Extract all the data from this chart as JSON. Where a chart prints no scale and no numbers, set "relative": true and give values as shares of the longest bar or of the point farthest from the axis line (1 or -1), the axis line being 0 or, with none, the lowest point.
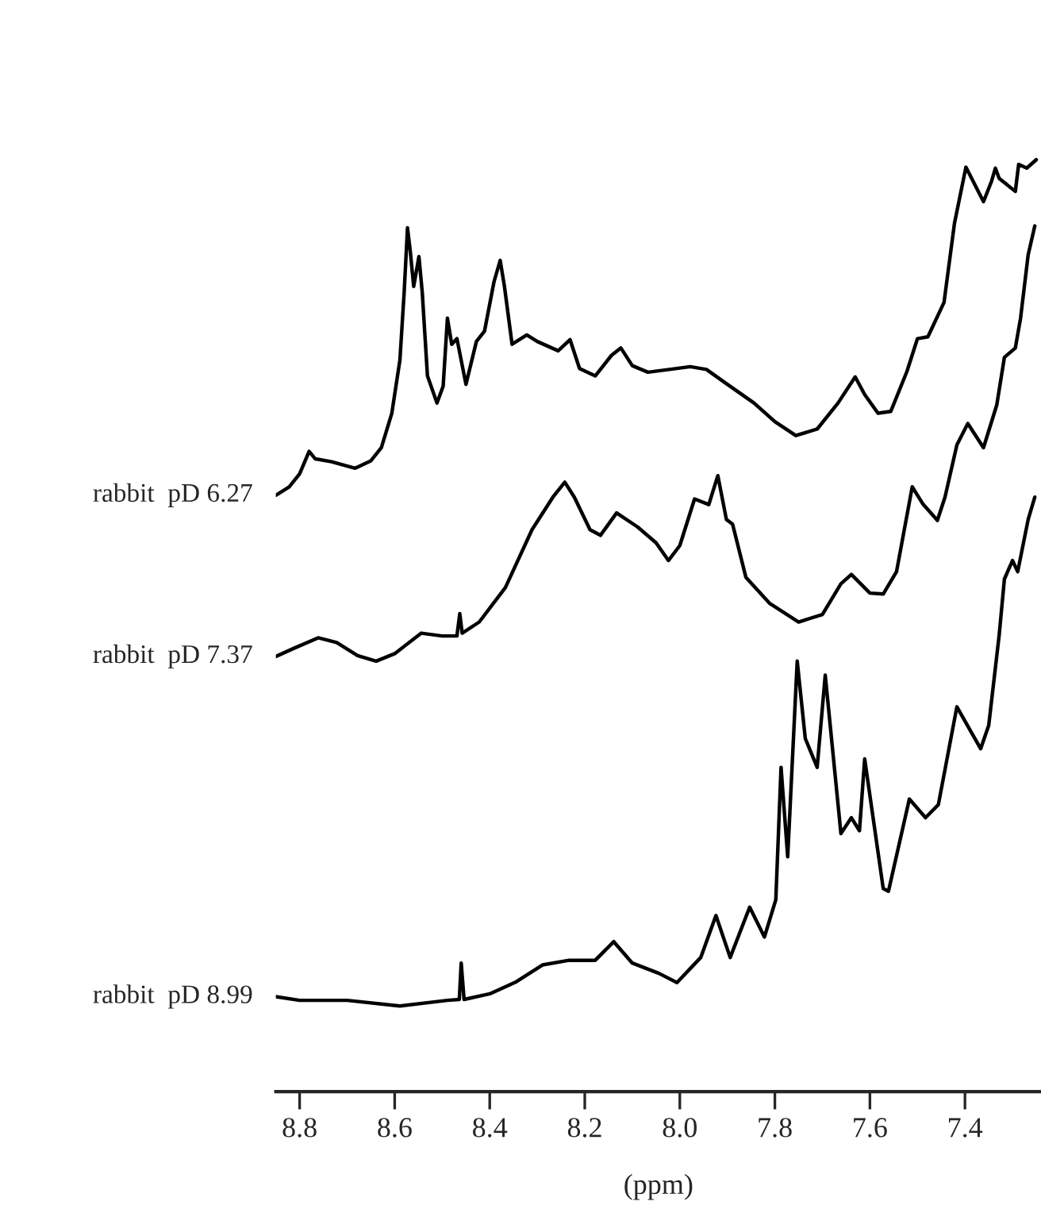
{
  "chart_data": {
    "type": "line",
    "relative": true,
    "xlabel": "(ppm)",
    "xlim": [
      8.85,
      7.24
    ],
    "xticks": [
      8.8,
      8.6,
      8.4,
      8.2,
      {
        "value": 8.0,
        "label": "8.0"
      },
      7.8,
      7.6,
      7.4
    ],
    "tick_labels": "x",
    "grid": false,
    "legend": false,
    "line_style": "solid",
    "marker": "none",
    "series": [
      {
        "name": "rabbit  pD 6.27",
        "color": "#000000",
        "x": [
          8.85,
          8.822,
          8.8,
          8.78,
          8.767,
          8.733,
          8.683,
          8.65,
          8.628,
          8.606,
          8.589,
          8.58,
          8.573,
          8.567,
          8.56,
          8.549,
          8.542,
          8.531,
          8.511,
          8.498,
          8.489,
          8.48,
          8.469,
          8.45,
          8.428,
          8.411,
          8.391,
          8.378,
          8.369,
          8.353,
          8.322,
          8.3,
          8.256,
          8.231,
          8.211,
          8.178,
          8.144,
          8.124,
          8.1,
          8.067,
          8.022,
          7.978,
          7.944,
          7.9,
          7.844,
          7.8,
          7.756,
          7.711,
          7.667,
          7.631,
          7.611,
          7.583,
          7.556,
          7.522,
          7.5,
          7.478,
          7.444,
          7.422,
          7.398,
          7.361,
          7.344,
          7.336,
          7.328,
          7.294,
          7.287,
          7.27,
          7.25
        ],
        "values": [
          0.64,
          0.649,
          0.663,
          0.687,
          0.679,
          0.676,
          0.669,
          0.677,
          0.691,
          0.728,
          0.785,
          0.858,
          0.927,
          0.901,
          0.864,
          0.896,
          0.858,
          0.768,
          0.739,
          0.757,
          0.83,
          0.802,
          0.808,
          0.759,
          0.805,
          0.816,
          0.869,
          0.892,
          0.864,
          0.802,
          0.812,
          0.805,
          0.795,
          0.807,
          0.776,
          0.768,
          0.79,
          0.798,
          0.779,
          0.772,
          0.775,
          0.778,
          0.775,
          0.759,
          0.739,
          0.719,
          0.704,
          0.711,
          0.739,
          0.767,
          0.748,
          0.728,
          0.73,
          0.773,
          0.808,
          0.81,
          0.847,
          0.932,
          0.992,
          0.955,
          0.977,
          0.991,
          0.98,
          0.966,
          0.995,
          0.991,
          1.0
        ]
      },
      {
        "name": "rabbit  pD 7.37",
        "color": "#000000",
        "x": [
          8.85,
          8.811,
          8.761,
          8.722,
          8.678,
          8.639,
          8.6,
          8.544,
          8.5,
          8.469,
          8.463,
          8.458,
          8.422,
          8.367,
          8.311,
          8.267,
          8.242,
          8.222,
          8.189,
          8.167,
          8.133,
          8.089,
          8.05,
          8.024,
          8.0,
          7.969,
          7.939,
          7.92,
          7.902,
          7.889,
          7.861,
          7.811,
          7.75,
          7.7,
          7.661,
          7.639,
          7.6,
          7.572,
          7.544,
          7.511,
          7.489,
          7.458,
          7.442,
          7.417,
          7.394,
          7.361,
          7.333,
          7.317,
          7.294,
          7.283,
          7.267,
          7.253
        ],
        "values": [
          0.467,
          0.476,
          0.487,
          0.482,
          0.468,
          0.462,
          0.47,
          0.492,
          0.489,
          0.489,
          0.513,
          0.492,
          0.504,
          0.541,
          0.603,
          0.638,
          0.654,
          0.638,
          0.603,
          0.597,
          0.621,
          0.606,
          0.589,
          0.57,
          0.586,
          0.636,
          0.63,
          0.661,
          0.614,
          0.609,
          0.552,
          0.524,
          0.504,
          0.512,
          0.545,
          0.555,
          0.535,
          0.534,
          0.558,
          0.649,
          0.631,
          0.613,
          0.638,
          0.694,
          0.717,
          0.691,
          0.737,
          0.788,
          0.798,
          0.83,
          0.898,
          0.929
        ]
      },
      {
        "name": "rabbit  pD 8.99",
        "color": "#000000",
        "x": [
          8.85,
          8.8,
          8.7,
          8.589,
          8.489,
          8.464,
          8.46,
          8.454,
          8.4,
          8.344,
          8.289,
          8.233,
          8.178,
          8.139,
          8.1,
          8.044,
          8.006,
          7.956,
          7.924,
          7.894,
          7.853,
          7.822,
          7.798,
          7.787,
          7.773,
          7.753,
          7.736,
          7.711,
          7.694,
          7.661,
          7.639,
          7.622,
          7.611,
          7.572,
          7.561,
          7.517,
          7.483,
          7.456,
          7.417,
          7.367,
          7.35,
          7.328,
          7.317,
          7.3,
          7.289,
          7.267,
          7.253
        ],
        "values": [
          0.102,
          0.098,
          0.098,
          0.092,
          0.098,
          0.099,
          0.138,
          0.099,
          0.105,
          0.118,
          0.136,
          0.141,
          0.141,
          0.161,
          0.138,
          0.127,
          0.117,
          0.144,
          0.189,
          0.144,
          0.198,
          0.166,
          0.206,
          0.348,
          0.252,
          0.462,
          0.379,
          0.348,
          0.447,
          0.277,
          0.294,
          0.28,
          0.357,
          0.218,
          0.215,
          0.314,
          0.294,
          0.308,
          0.413,
          0.368,
          0.393,
          0.49,
          0.55,
          0.57,
          0.558,
          0.614,
          0.638
        ]
      }
    ]
  }
}
